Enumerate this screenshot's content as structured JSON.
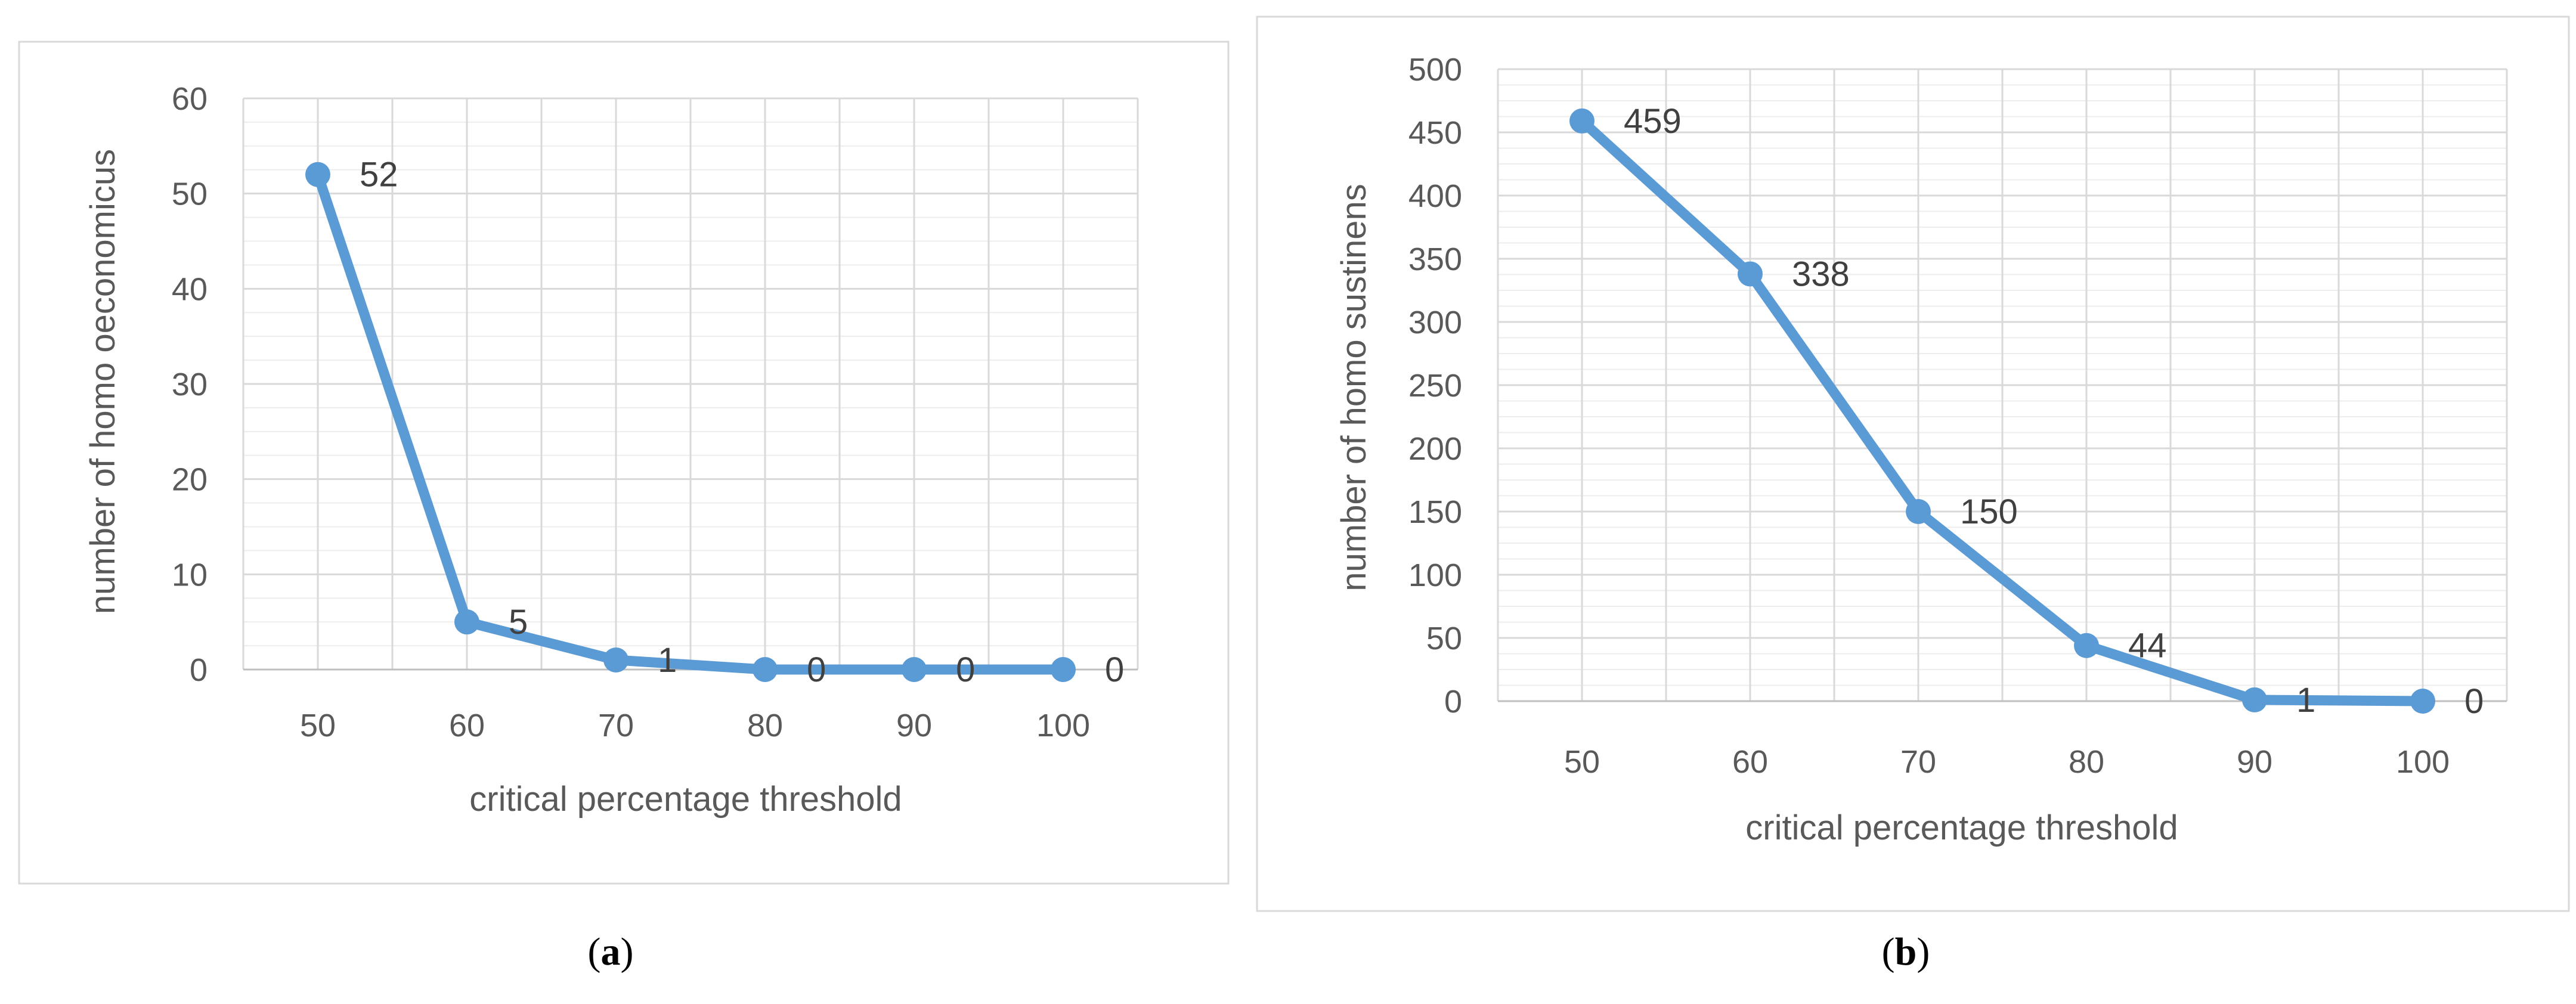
{
  "chart_data": [
    {
      "type": "line",
      "caption_letter": "a",
      "x": [
        50,
        60,
        70,
        80,
        90,
        100
      ],
      "values": [
        52,
        5,
        1,
        0,
        0,
        0
      ],
      "xlabel": "critical percentage threshold",
      "ylabel": "number of homo oeconomicus",
      "ylim": [
        0,
        60
      ],
      "yticks": [
        0,
        10,
        20,
        30,
        40,
        50,
        60
      ],
      "grid": true,
      "legend": "none",
      "color": "#5B9BD5"
    },
    {
      "type": "line",
      "caption_letter": "b",
      "x": [
        50,
        60,
        70,
        80,
        90,
        100
      ],
      "values": [
        459,
        338,
        150,
        44,
        1,
        0
      ],
      "xlabel": "critical percentage threshold",
      "ylabel": "number of homo sustinens",
      "ylim": [
        0,
        500
      ],
      "yticks": [
        0,
        50,
        100,
        150,
        200,
        250,
        300,
        350,
        400,
        450,
        500
      ],
      "grid": true,
      "legend": "none",
      "color": "#5B9BD5"
    }
  ]
}
